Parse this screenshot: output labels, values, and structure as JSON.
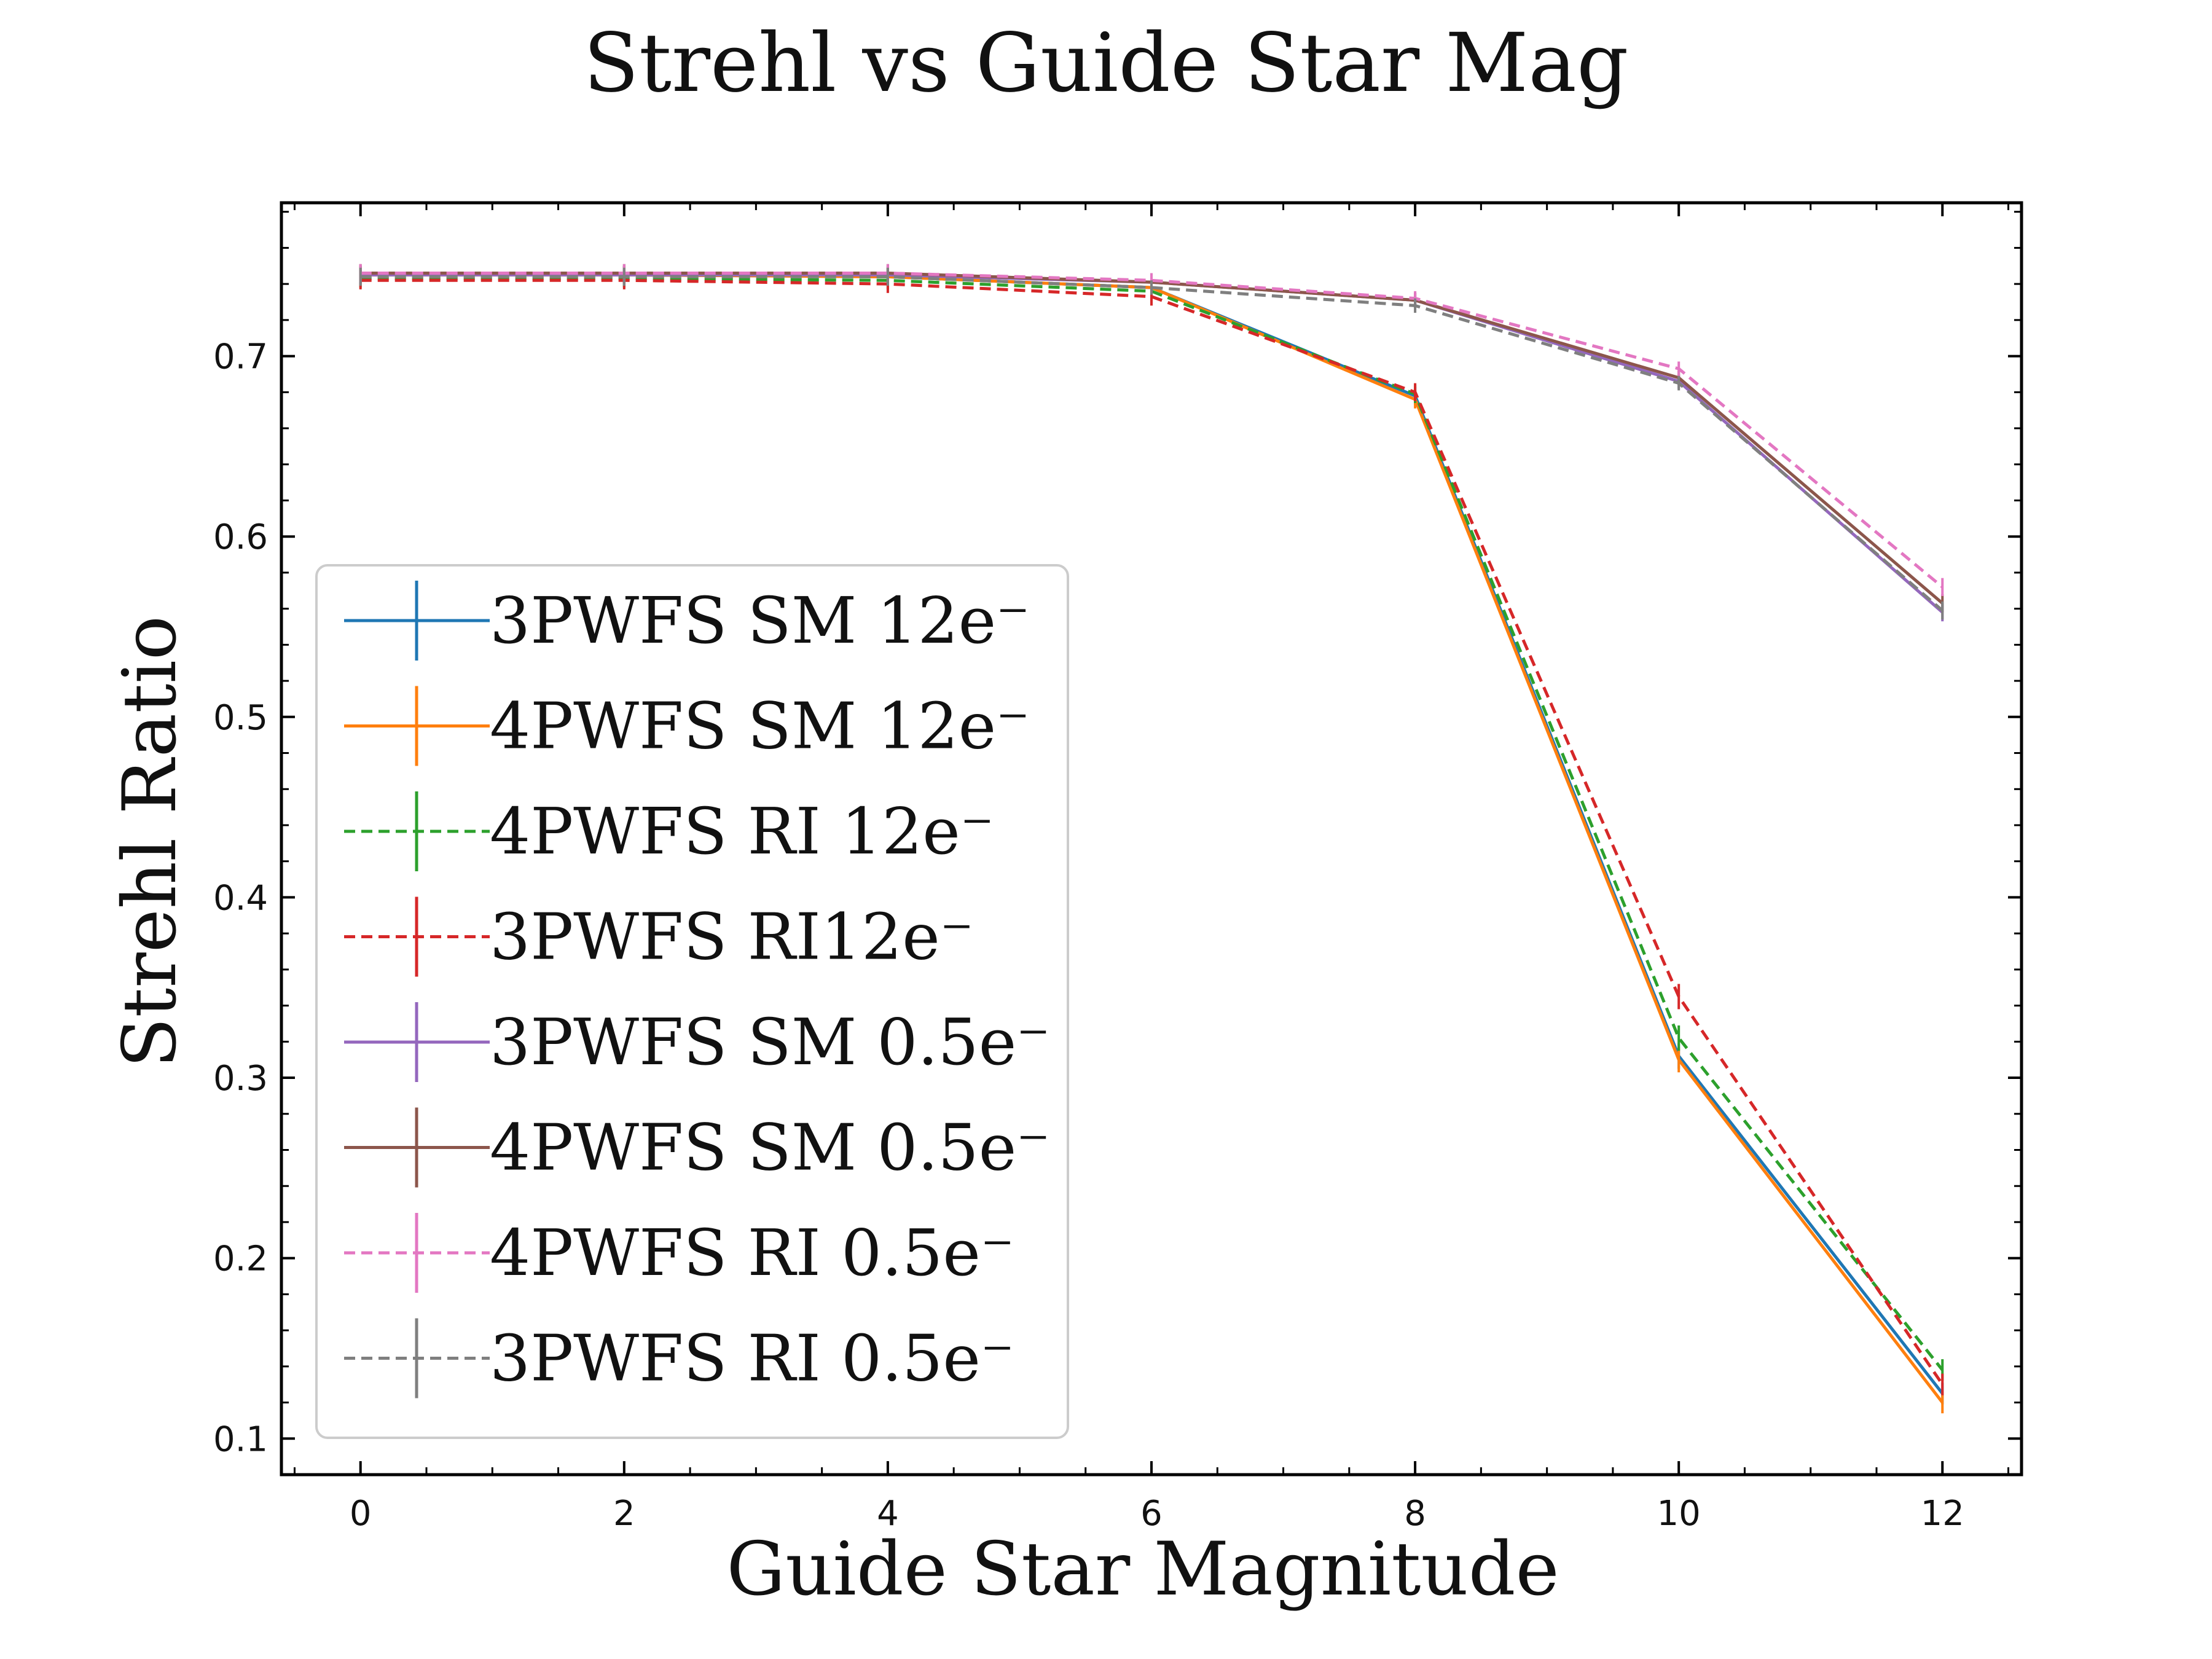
{
  "chart_data": {
    "type": "line",
    "title": "Strehl vs Guide Star Mag",
    "xlabel": "Guide Star Magnitude",
    "ylabel": "Strehl Ratio",
    "xlim": [
      -0.6,
      12.6
    ],
    "ylim": [
      0.08,
      0.785
    ],
    "x": [
      0,
      2,
      4,
      6,
      8,
      10,
      12
    ],
    "xticks": [
      0,
      2,
      4,
      6,
      8,
      10,
      12
    ],
    "yticks": [
      0.1,
      0.2,
      0.3,
      0.4,
      0.5,
      0.6,
      0.7
    ],
    "ytick_labels": [
      "0.1",
      "0.2",
      "0.3",
      "0.4",
      "0.5",
      "0.6",
      "0.7"
    ],
    "grid": false,
    "legend_position": "lower-left",
    "series": [
      {
        "name": "3PWFS SM 12e⁻",
        "color": "#1f77b4",
        "dashed": false,
        "values": [
          0.745,
          0.745,
          0.744,
          0.738,
          0.678,
          0.312,
          0.125
        ],
        "err": [
          0.005,
          0.005,
          0.005,
          0.005,
          0.005,
          0.007,
          0.006
        ]
      },
      {
        "name": "4PWFS SM 12e⁻",
        "color": "#ff7f0e",
        "dashed": false,
        "values": [
          0.745,
          0.745,
          0.744,
          0.738,
          0.676,
          0.31,
          0.12
        ],
        "err": [
          0.005,
          0.005,
          0.005,
          0.005,
          0.005,
          0.007,
          0.006
        ]
      },
      {
        "name": "4PWFS RI 12e⁻",
        "color": "#2ca02c",
        "dashed": true,
        "values": [
          0.743,
          0.743,
          0.742,
          0.736,
          0.679,
          0.322,
          0.138
        ],
        "err": [
          0.005,
          0.005,
          0.005,
          0.005,
          0.005,
          0.007,
          0.006
        ]
      },
      {
        "name": "3PWFS RI12e⁻",
        "color": "#d62728",
        "dashed": true,
        "values": [
          0.742,
          0.742,
          0.74,
          0.733,
          0.68,
          0.345,
          0.13
        ],
        "err": [
          0.005,
          0.005,
          0.005,
          0.005,
          0.005,
          0.007,
          0.006
        ]
      },
      {
        "name": "3PWFS SM 0.5e⁻",
        "color": "#9467bd",
        "dashed": false,
        "values": [
          0.745,
          0.745,
          0.745,
          0.741,
          0.731,
          0.686,
          0.558
        ],
        "err": [
          0.005,
          0.005,
          0.005,
          0.004,
          0.004,
          0.004,
          0.005
        ]
      },
      {
        "name": "4PWFS SM 0.5e⁻",
        "color": "#8c564b",
        "dashed": false,
        "values": [
          0.746,
          0.746,
          0.746,
          0.741,
          0.731,
          0.688,
          0.563
        ],
        "err": [
          0.005,
          0.005,
          0.005,
          0.004,
          0.004,
          0.004,
          0.005
        ]
      },
      {
        "name": "4PWFS RI 0.5e⁻",
        "color": "#e377c2",
        "dashed": true,
        "values": [
          0.746,
          0.746,
          0.746,
          0.742,
          0.732,
          0.693,
          0.572
        ],
        "err": [
          0.005,
          0.005,
          0.005,
          0.004,
          0.004,
          0.004,
          0.005
        ]
      },
      {
        "name": "3PWFS RI 0.5e⁻",
        "color": "#7f7f7f",
        "dashed": true,
        "values": [
          0.744,
          0.744,
          0.744,
          0.738,
          0.728,
          0.685,
          0.559
        ],
        "err": [
          0.005,
          0.005,
          0.005,
          0.004,
          0.004,
          0.004,
          0.005
        ]
      }
    ]
  }
}
